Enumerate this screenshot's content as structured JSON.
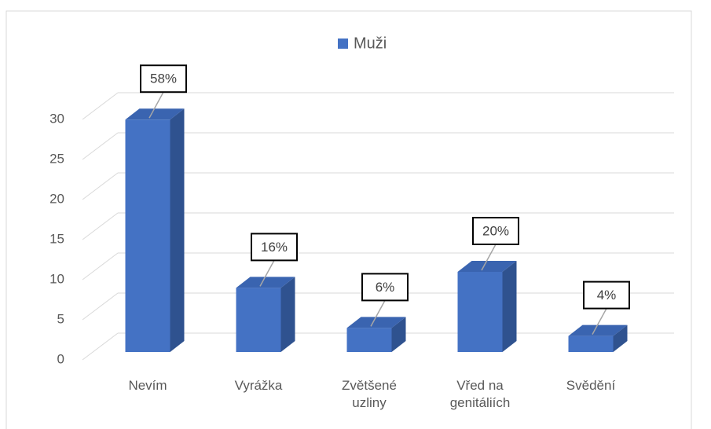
{
  "chart_data": {
    "type": "bar3d",
    "categories": [
      "Nevím",
      "Vyrážka",
      "Zvětšené uzliny",
      "Vřed na genitáliích",
      "Svědění"
    ],
    "series": [
      {
        "name": "Muži",
        "color": "#4472c4",
        "values": [
          29,
          8,
          3,
          10,
          2
        ]
      }
    ],
    "annotations": [
      "58%",
      "16%",
      "6%",
      "20%",
      "4%"
    ],
    "ylim": [
      0,
      30
    ],
    "yticks": [
      0,
      5,
      10,
      15,
      20,
      25,
      30
    ],
    "grid": true,
    "legend": "top"
  }
}
